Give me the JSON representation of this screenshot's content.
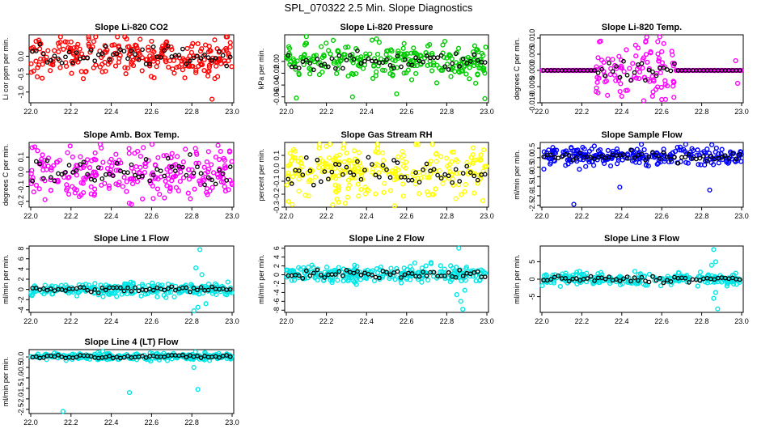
{
  "page": {
    "title": "SPL_070322  2.5 Min. Slope Diagnostics"
  },
  "chart_data": [
    {
      "type": "scatter",
      "title": "Slope Li-820 CO2",
      "ylabel": "Li cor ppm per min.",
      "color": "#ff0000",
      "xlim": [
        22.0,
        23.0
      ],
      "ylim": [
        -1.3,
        0.6
      ],
      "xticks": [
        "22.0",
        "22.2",
        "22.4",
        "22.6",
        "22.8",
        "23.0"
      ],
      "yticks": [
        {
          "v": 0.0,
          "label": "0.0"
        },
        {
          "v": -0.5,
          "label": "-0.5"
        },
        {
          "v": -1.0,
          "label": "-1.0"
        }
      ],
      "spread": 0.3,
      "center": 0.0,
      "outliers": [
        [
          22.04,
          0.45
        ],
        [
          22.88,
          -0.55
        ],
        [
          22.2,
          0.4
        ],
        [
          22.6,
          0.42
        ],
        [
          22.9,
          -1.2
        ],
        [
          22.83,
          0.35
        ]
      ]
    },
    {
      "type": "scatter",
      "title": "Slope Li-820 Pressure",
      "ylabel": "kPa per min.",
      "color": "#00cc00",
      "xlim": [
        22.0,
        23.0
      ],
      "ylim": [
        -0.07,
        0.045
      ],
      "xticks": [
        "22.0",
        "22.2",
        "22.4",
        "22.6",
        "22.8",
        "23.0"
      ],
      "yticks": [
        {
          "v": 0.0,
          "label": "0.00"
        },
        {
          "v": -0.02,
          "label": "-0.02"
        },
        {
          "v": -0.04,
          "label": "-0.04"
        },
        {
          "v": -0.06,
          "label": "-0.06"
        }
      ],
      "spread": 0.016,
      "center": 0.0,
      "outliers": [
        [
          22.1,
          0.042
        ],
        [
          22.05,
          -0.062
        ],
        [
          22.55,
          -0.055
        ],
        [
          22.99,
          -0.063
        ],
        [
          22.33,
          -0.06
        ],
        [
          22.45,
          0.038
        ]
      ]
    },
    {
      "type": "scatter",
      "title": "Slope Li-820 Temp.",
      "ylabel": "degrees C per min.",
      "color": "#ff00ff",
      "xlim": [
        22.0,
        23.0
      ],
      "ylim": [
        -0.01,
        0.011
      ],
      "xticks": [
        "22.0",
        "22.2",
        "22.4",
        "22.6",
        "22.8",
        "23.0"
      ],
      "yticks": [
        {
          "v": 0.01,
          "label": "0.010"
        },
        {
          "v": 0.005,
          "label": "0.005"
        },
        {
          "v": 0.0,
          "label": "0.000"
        },
        {
          "v": -0.005,
          "label": "-0.005"
        },
        {
          "v": -0.01,
          "label": "-0.010"
        }
      ],
      "spread": 0.0,
      "center": 0.0,
      "burst": {
        "x0": 22.27,
        "x1": 22.67,
        "spread": 0.0045
      },
      "outliers": [
        [
          22.52,
          0.009
        ],
        [
          22.4,
          -0.008
        ],
        [
          22.6,
          -0.009
        ],
        [
          22.97,
          0.003
        ],
        [
          22.98,
          -0.004
        ]
      ]
    },
    {
      "type": "scatter",
      "title": "Slope Amb. Box Temp.",
      "ylabel": "degrees C per min.",
      "color": "#ff00ff",
      "xlim": [
        22.0,
        23.0
      ],
      "ylim": [
        -0.24,
        0.2
      ],
      "xticks": [
        "22.0",
        "22.2",
        "22.4",
        "22.6",
        "22.8",
        "23.0"
      ],
      "yticks": [
        {
          "v": 0.1,
          "label": "0.1"
        },
        {
          "v": 0.0,
          "label": "0.0"
        },
        {
          "v": -0.1,
          "label": "-0.1"
        },
        {
          "v": -0.2,
          "label": "-0.2"
        }
      ],
      "spread": 0.1,
      "center": 0.0,
      "outliers": [
        [
          22.02,
          0.17
        ],
        [
          22.5,
          -0.22
        ],
        [
          22.93,
          0.18
        ],
        [
          22.3,
          -0.15
        ]
      ]
    },
    {
      "type": "scatter",
      "title": "Slope Gas Stream RH",
      "ylabel": "percent per min.",
      "color": "#ffff00",
      "xlim": [
        22.0,
        23.0
      ],
      "ylim": [
        -0.3,
        0.2
      ],
      "xticks": [
        "22.0",
        "22.2",
        "22.4",
        "22.6",
        "22.8",
        "23.0"
      ],
      "yticks": [
        {
          "v": 0.1,
          "label": "0.1"
        },
        {
          "v": 0.0,
          "label": "0.0"
        },
        {
          "v": -0.1,
          "label": "-0.1"
        },
        {
          "v": -0.2,
          "label": "-0.2"
        },
        {
          "v": -0.3,
          "label": "-0.3"
        }
      ],
      "spread": 0.11,
      "center": -0.02,
      "outliers": [
        [
          22.03,
          -0.28
        ],
        [
          22.54,
          -0.29
        ],
        [
          22.2,
          0.17
        ],
        [
          22.98,
          -0.25
        ]
      ]
    },
    {
      "type": "scatter",
      "title": "Slope Sample Flow",
      "ylabel": "ml/min per min.",
      "color": "#0000ff",
      "xlim": [
        22.0,
        23.0
      ],
      "ylim": [
        -2.6,
        0.8
      ],
      "xticks": [
        "22.0",
        "22.2",
        "22.4",
        "22.6",
        "22.8",
        "23.0"
      ],
      "yticks": [
        {
          "v": 0.5,
          "label": "0.5"
        },
        {
          "v": 0.0,
          "label": "0.0"
        },
        {
          "v": -0.5,
          "label": "-0.5"
        },
        {
          "v": -1.0,
          "label": "-1.0"
        },
        {
          "v": -1.5,
          "label": "-1.5"
        },
        {
          "v": -2.0,
          "label": "-2.0"
        },
        {
          "v": -2.5,
          "label": "-2.5"
        }
      ],
      "spread": 0.28,
      "center": 0.05,
      "outliers": [
        [
          22.16,
          -2.45
        ],
        [
          22.39,
          -1.55
        ],
        [
          22.84,
          -1.7
        ],
        [
          22.72,
          0.7
        ],
        [
          22.01,
          -0.6
        ]
      ]
    },
    {
      "type": "scatter",
      "title": "Slope Line 1 Flow",
      "ylabel": "ml/min per min.",
      "color": "#00e6e6",
      "xlim": [
        22.0,
        23.0
      ],
      "ylim": [
        -4.5,
        8.5
      ],
      "xticks": [
        "22.0",
        "22.2",
        "22.4",
        "22.6",
        "22.8",
        "23.0"
      ],
      "yticks": [
        {
          "v": 8,
          "label": "8"
        },
        {
          "v": 6,
          "label": "6"
        },
        {
          "v": 4,
          "label": "4"
        },
        {
          "v": 2,
          "label": "2"
        },
        {
          "v": 0,
          "label": "0"
        },
        {
          "v": -2,
          "label": "-2"
        },
        {
          "v": -4,
          "label": "-4"
        }
      ],
      "spread": 0.7,
      "center": 0.0,
      "outliers": [
        [
          22.84,
          7.8
        ],
        [
          22.82,
          4.2
        ],
        [
          22.85,
          2.9
        ],
        [
          22.81,
          -4.2
        ],
        [
          22.87,
          -2.8
        ],
        [
          22.83,
          -3.5
        ]
      ]
    },
    {
      "type": "scatter",
      "title": "Slope Line 2 Flow",
      "ylabel": "ml/min per min.",
      "color": "#00e6e6",
      "xlim": [
        22.0,
        23.0
      ],
      "ylim": [
        -8.5,
        6.5
      ],
      "xticks": [
        "22.0",
        "22.2",
        "22.4",
        "22.6",
        "22.8",
        "23.0"
      ],
      "yticks": [
        {
          "v": 6,
          "label": "6"
        },
        {
          "v": 4,
          "label": "4"
        },
        {
          "v": 2,
          "label": "2"
        },
        {
          "v": 0,
          "label": "0"
        },
        {
          "v": -2,
          "label": "-2"
        },
        {
          "v": -4,
          "label": "-4"
        },
        {
          "v": -6,
          "label": "-6"
        },
        {
          "v": -8,
          "label": "-8"
        }
      ],
      "spread": 1.0,
      "center": 0.2,
      "outliers": [
        [
          22.86,
          6.0
        ],
        [
          22.88,
          -7.8
        ],
        [
          22.87,
          -6.0
        ],
        [
          22.85,
          -4.5
        ],
        [
          22.89,
          -3.5
        ]
      ]
    },
    {
      "type": "scatter",
      "title": "Slope Line 3 Flow",
      "ylabel": "ml/min per min.",
      "color": "#00e6e6",
      "xlim": [
        22.0,
        23.0
      ],
      "ylim": [
        -9.5,
        9.5
      ],
      "xticks": [
        "22.0",
        "22.2",
        "22.4",
        "22.6",
        "22.8",
        "23.0"
      ],
      "yticks": [
        {
          "v": 5,
          "label": "5"
        },
        {
          "v": 0,
          "label": "0"
        },
        {
          "v": -5,
          "label": "-5"
        }
      ],
      "spread": 1.0,
      "center": 0.0,
      "outliers": [
        [
          22.86,
          8.5
        ],
        [
          22.85,
          4.0
        ],
        [
          22.87,
          5.0
        ],
        [
          22.88,
          -8.5
        ],
        [
          22.86,
          -5.5
        ],
        [
          22.87,
          -3.8
        ]
      ]
    },
    {
      "type": "scatter",
      "title": "Slope Line 4 (LT) Flow",
      "ylabel": "ml/min per min.",
      "color": "#00e6e6",
      "xlim": [
        22.0,
        23.0
      ],
      "ylim": [
        -2.7,
        0.35
      ],
      "xticks": [
        "22.0",
        "22.2",
        "22.4",
        "22.6",
        "22.8",
        "23.0"
      ],
      "yticks": [
        {
          "v": 0.0,
          "label": "0.0"
        },
        {
          "v": -0.5,
          "label": "-0.5"
        },
        {
          "v": -1.0,
          "label": "-1.0"
        },
        {
          "v": -1.5,
          "label": "-1.5"
        },
        {
          "v": -2.0,
          "label": "-2.0"
        },
        {
          "v": -2.5,
          "label": "-2.5"
        }
      ],
      "spread": 0.09,
      "center": 0.02,
      "outliers": [
        [
          22.16,
          -2.6
        ],
        [
          22.49,
          -1.7
        ],
        [
          22.83,
          -1.55
        ],
        [
          22.81,
          -0.5
        ]
      ]
    }
  ]
}
